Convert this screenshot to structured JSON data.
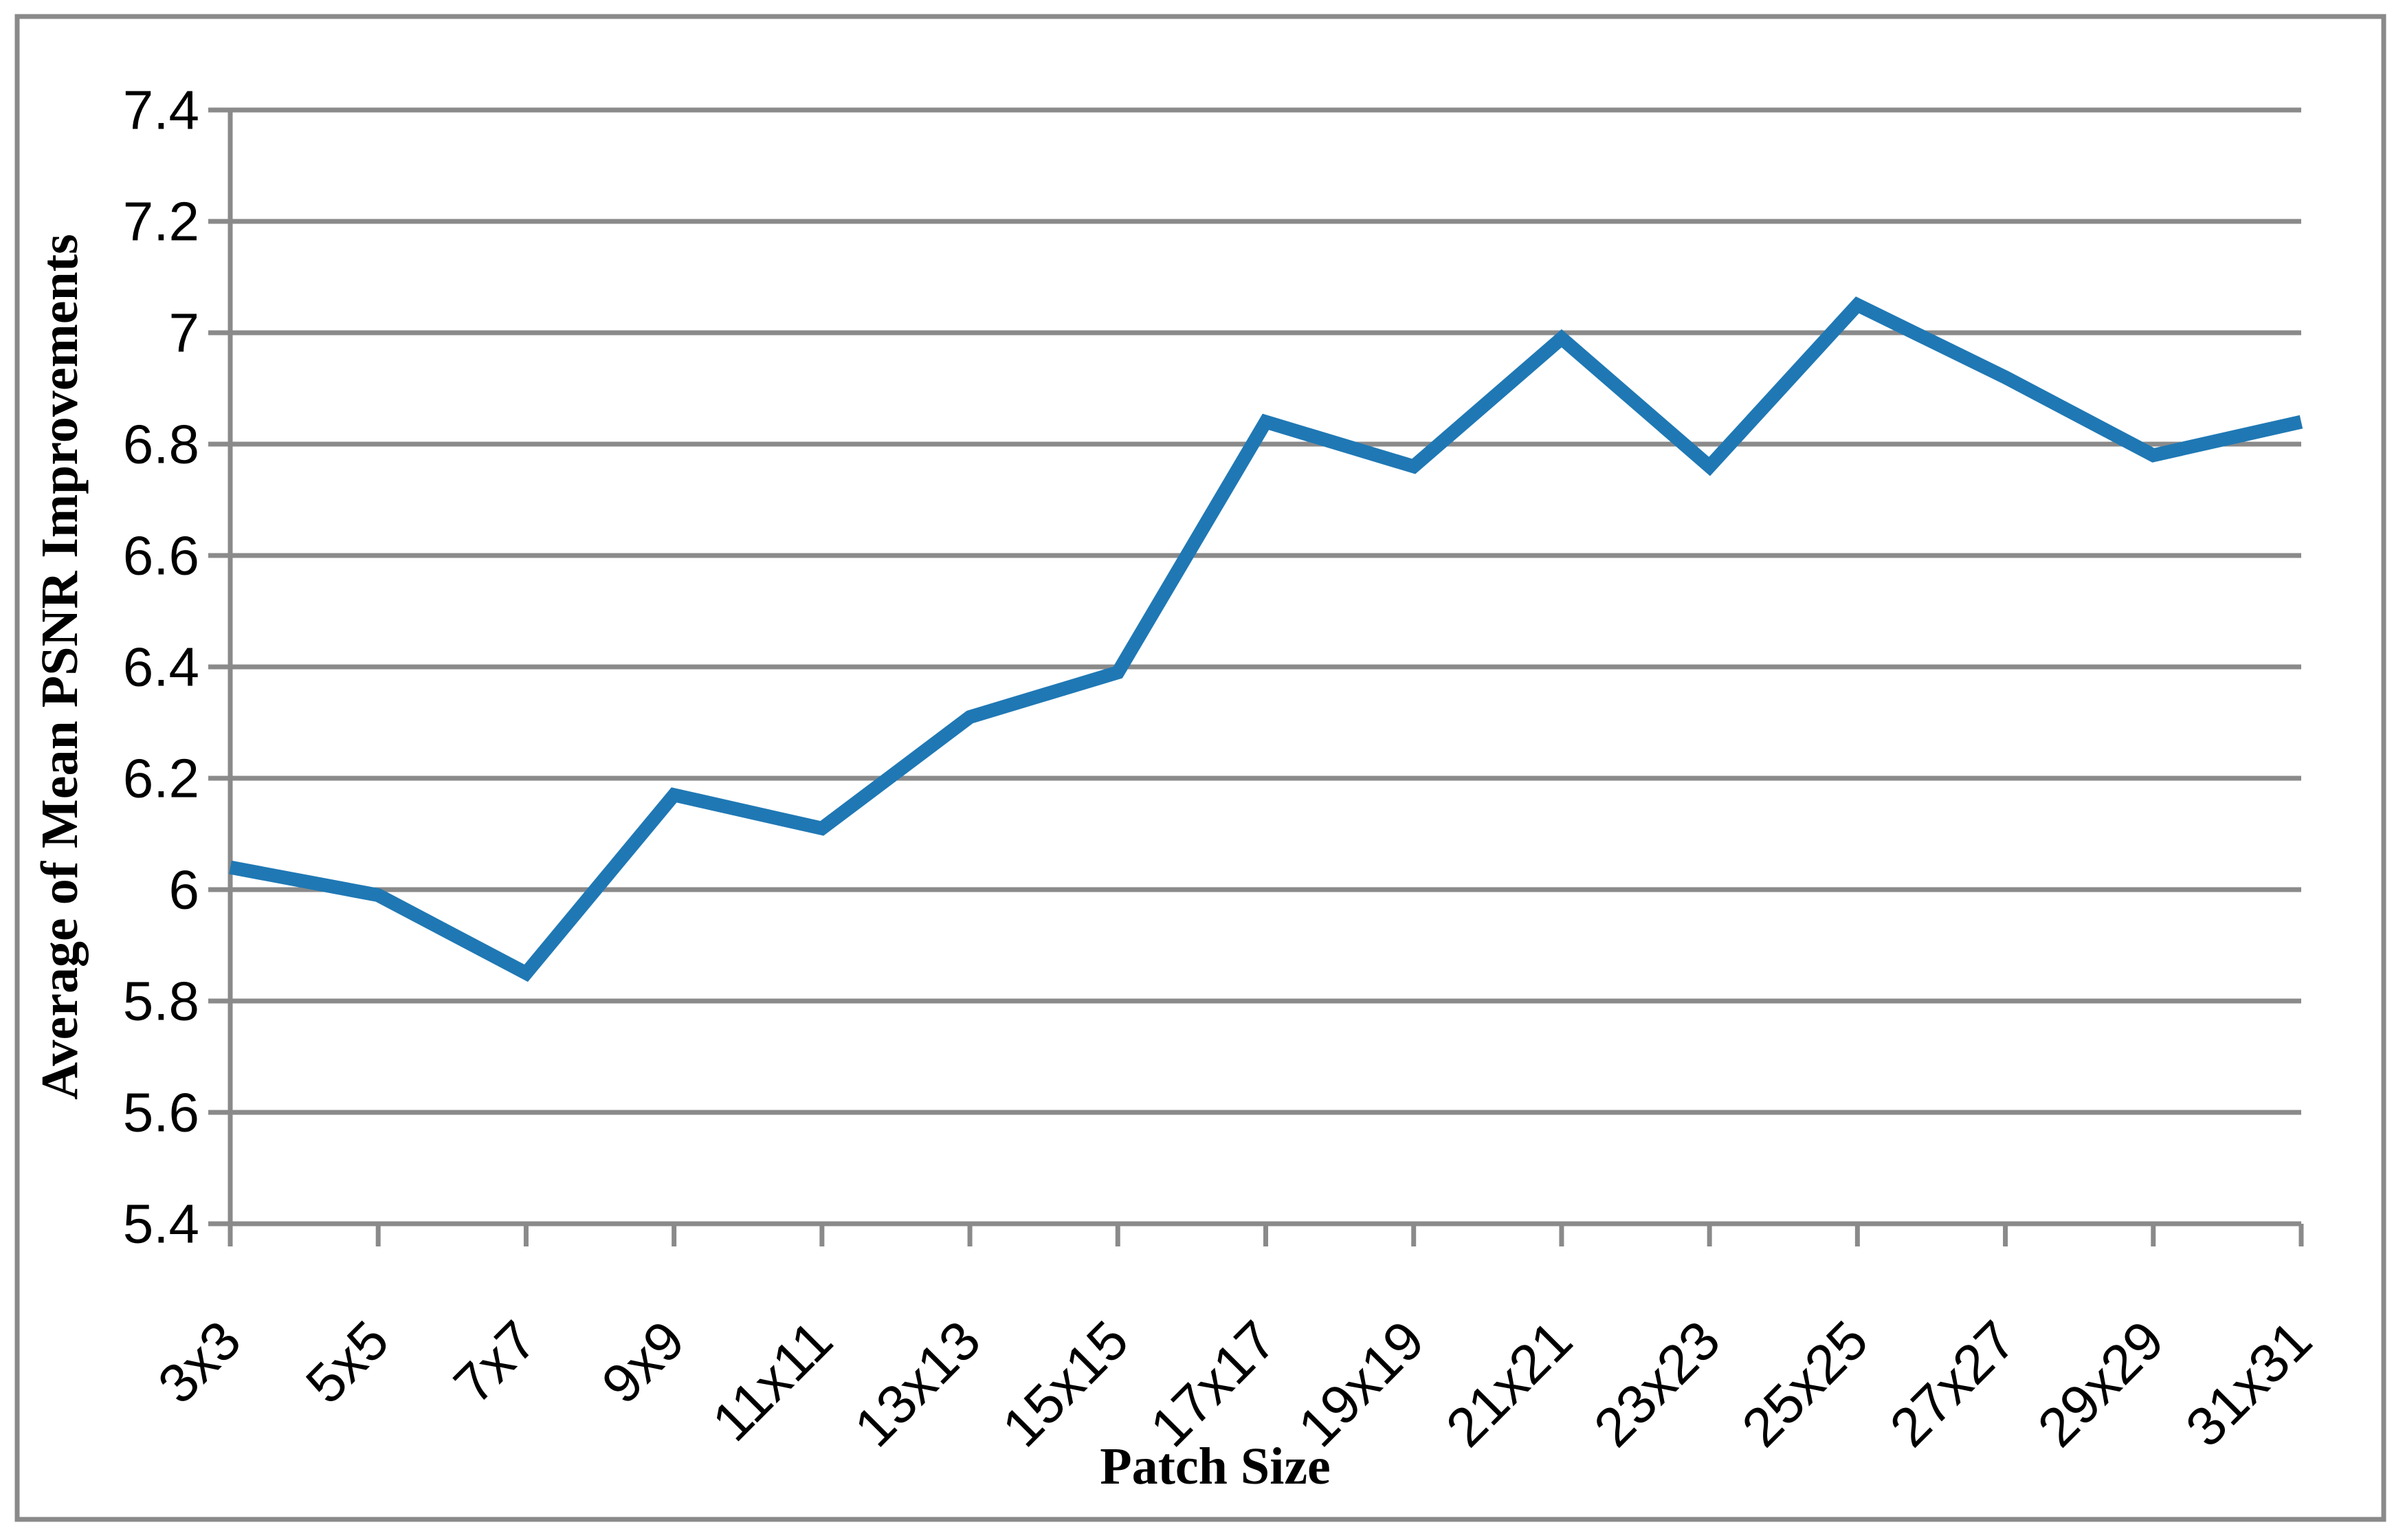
{
  "figure": {
    "background_color": "#ffffff",
    "border_color": "#8a8a8a"
  },
  "chart_data": {
    "type": "line",
    "title": "",
    "categories": [
      "3x3",
      "5x5",
      "7x7",
      "9x9",
      "11x11",
      "13x13",
      "15x15",
      "17x17",
      "19x19",
      "21x21",
      "23x23",
      "25x25",
      "27x27",
      "29x29",
      "31x31"
    ],
    "series": [
      {
        "name": "Average of Mean PSNR Improvements",
        "values": [
          6.04,
          5.99,
          5.85,
          6.17,
          6.11,
          6.31,
          6.39,
          6.84,
          6.76,
          6.99,
          6.76,
          7.05,
          6.92,
          6.78,
          6.84
        ]
      }
    ],
    "xlabel": "Patch Size",
    "ylabel": "Average of Mean PSNR Improvements",
    "ylim": [
      5.4,
      7.4
    ],
    "ytick_step": 0.2,
    "ytick_labels": [
      "5.4",
      "5.6",
      "5.8",
      "6",
      "6.2",
      "6.4",
      "6.6",
      "6.8",
      "7",
      "7.2",
      "7.4"
    ],
    "grid": true,
    "legend_position": "none",
    "line_color": "#1f78b4",
    "gridline_color": "#8a8a8a",
    "axis_color": "#8a8a8a",
    "tick_label_color": "#000000"
  }
}
